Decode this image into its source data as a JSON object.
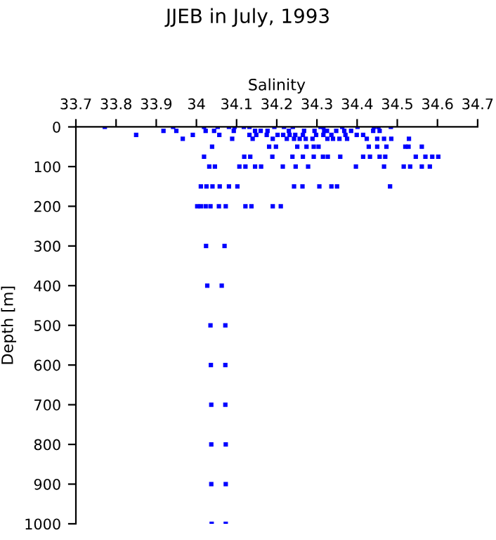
{
  "chart_data": {
    "type": "scatter",
    "title": "JJEB in July, 1993",
    "xlabel": "Salinity",
    "ylabel": "Depth [m]",
    "xlim": [
      33.7,
      34.7
    ],
    "xticks": [
      33.7,
      33.8,
      33.9,
      34,
      34.1,
      34.2,
      34.3,
      34.4,
      34.5,
      34.6,
      34.7
    ],
    "ylim": [
      1000,
      0
    ],
    "yticks": [
      0,
      100,
      200,
      300,
      400,
      500,
      600,
      700,
      800,
      900,
      1000
    ],
    "grid": false,
    "marker": "square",
    "series": [
      {
        "color": "#0000ff",
        "x": [
          33.772,
          33.942,
          34.019,
          34.053,
          34.081,
          34.095,
          34.118,
          34.132,
          34.194,
          34.218,
          34.24,
          34.309,
          34.316,
          34.363,
          34.401,
          34.442,
          34.453,
          34.484,
          33.918,
          33.95,
          34.023,
          34.044,
          34.093,
          34.146,
          34.16,
          34.177,
          34.23,
          34.268,
          34.294,
          34.318,
          34.325,
          34.348,
          34.368,
          34.385,
          34.44,
          34.456,
          33.85,
          33.991,
          34.057,
          34.132,
          34.149,
          34.175,
          34.202,
          34.216,
          34.232,
          34.246,
          34.265,
          34.298,
          34.316,
          34.336,
          34.371,
          34.399,
          34.415,
          33.966,
          34.089,
          34.14,
          34.19,
          34.225,
          34.243,
          34.257,
          34.272,
          34.289,
          34.326,
          34.34,
          34.356,
          34.375,
          34.424,
          34.45,
          34.467,
          34.485,
          34.529,
          34.039,
          34.181,
          34.198,
          34.251,
          34.274,
          34.292,
          34.304,
          34.429,
          34.45,
          34.473,
          34.52,
          34.528,
          34.561,
          34.019,
          34.119,
          34.134,
          34.189,
          34.239,
          34.265,
          34.292,
          34.315,
          34.327,
          34.358,
          34.415,
          34.432,
          34.456,
          34.47,
          34.546,
          34.57,
          34.587,
          34.602,
          34.032,
          34.046,
          34.107,
          34.122,
          34.146,
          34.161,
          34.215,
          34.247,
          34.278,
          34.397,
          34.467,
          34.516,
          34.532,
          34.561,
          34.581,
          34.011,
          34.025,
          34.04,
          34.058,
          34.081,
          34.102,
          34.243,
          34.264,
          34.306,
          34.336,
          34.35,
          34.482,
          34.002,
          34.011,
          34.023,
          34.035,
          34.056,
          34.073,
          34.122,
          34.137,
          34.19,
          34.21,
          34.024,
          34.07,
          34.027,
          34.063,
          34.035,
          34.072,
          34.036,
          34.072,
          34.037,
          34.072,
          34.037,
          34.073,
          34.037,
          34.073,
          34.038,
          34.073
        ],
        "values": [
          0,
          0,
          0,
          0,
          0,
          0,
          0,
          0,
          0,
          0,
          0,
          0,
          0,
          0,
          0,
          0,
          0,
          0,
          10,
          10,
          10,
          10,
          10,
          10,
          10,
          10,
          10,
          10,
          10,
          10,
          10,
          10,
          10,
          10,
          10,
          10,
          20,
          20,
          20,
          20,
          20,
          20,
          20,
          20,
          20,
          20,
          20,
          20,
          20,
          20,
          20,
          20,
          20,
          30,
          30,
          30,
          30,
          30,
          30,
          30,
          30,
          30,
          30,
          30,
          30,
          30,
          30,
          30,
          30,
          30,
          30,
          50,
          50,
          50,
          50,
          50,
          50,
          50,
          50,
          50,
          50,
          50,
          50,
          50,
          75,
          75,
          75,
          75,
          75,
          75,
          75,
          75,
          75,
          75,
          75,
          75,
          75,
          75,
          75,
          75,
          75,
          75,
          100,
          100,
          100,
          100,
          100,
          100,
          100,
          100,
          100,
          100,
          100,
          100,
          100,
          100,
          100,
          150,
          150,
          150,
          150,
          150,
          150,
          150,
          150,
          150,
          150,
          150,
          150,
          200,
          200,
          200,
          200,
          200,
          200,
          200,
          200,
          200,
          200,
          300,
          300,
          400,
          400,
          500,
          500,
          600,
          600,
          700,
          700,
          800,
          800,
          900,
          900,
          1000,
          1000
        ]
      }
    ]
  }
}
